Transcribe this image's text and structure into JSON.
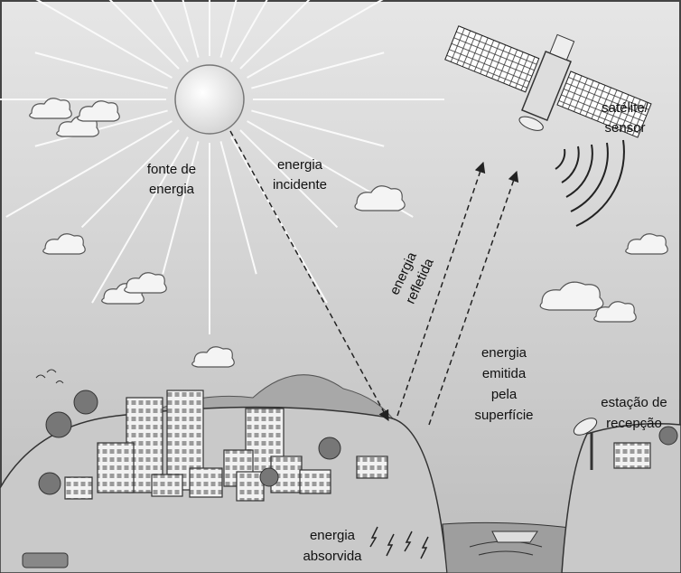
{
  "labels": {
    "source": [
      "fonte de",
      "energia"
    ],
    "incident": [
      "energia",
      "incidente"
    ],
    "reflected": [
      "energia",
      "refletida"
    ],
    "satellite": [
      "satélite/",
      "sensor"
    ],
    "emitted": [
      "energia",
      "emitida",
      "pela",
      "superfície"
    ],
    "station": [
      "estação de",
      "recepção"
    ],
    "absorbed": [
      "energia",
      "absorvida"
    ]
  }
}
